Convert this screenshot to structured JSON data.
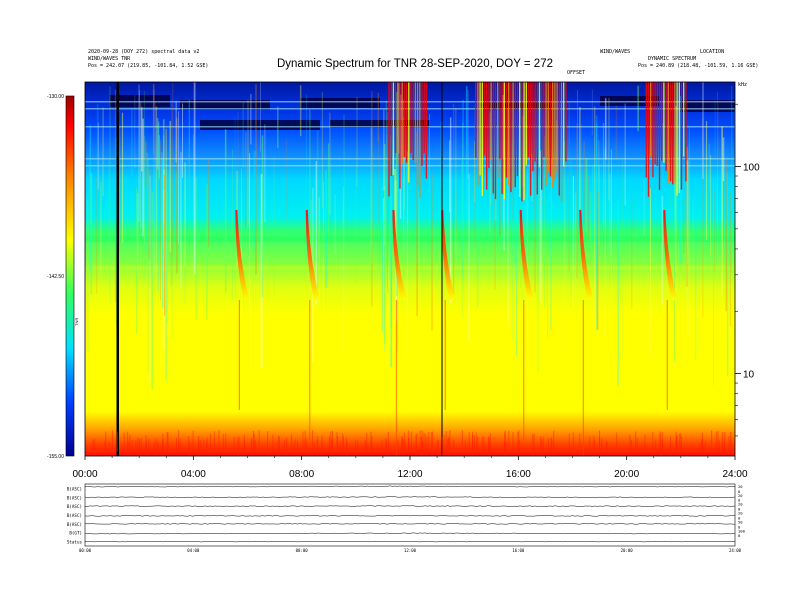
{
  "header": {
    "title": "Dynamic Spectrum for TNR 28-SEP-2020, DOY = 272",
    "left_line1": "2020-09-28 (DOY 272) spectral data v2",
    "left_line2": "WIND/WAVES TNR",
    "left_line3": "Pos = 242.07 (219.85, -101.84, 1.52 GSE)",
    "right_line1": "WIND/WAVES",
    "right_line2": "LOCATION",
    "right_line3": "DYNAMIC SPECTRUM",
    "right_line4": "Pos = 240.89 (218.48, -101.59, 1.16 GSE)",
    "center_small": "OFFSET",
    "corner_right": "kHz"
  },
  "colorbar": {
    "labels": [
      "-130.00",
      "-142.50",
      "-155.00"
    ],
    "axis_label": "TNR"
  },
  "chart_data": [
    {
      "type": "heatmap",
      "title": "Dynamic Spectrum for TNR 28-SEP-2020, DOY = 272",
      "x_tick_labels": [
        "00:00",
        "04:00",
        "08:00",
        "12:00",
        "16:00",
        "20:00",
        "24:00"
      ],
      "x_range_hours": [
        0,
        24
      ],
      "y_scale": "log",
      "y_tick_labels": [
        "100",
        "10"
      ],
      "y_range_khz": [
        4,
        256
      ],
      "colorbar_range": [
        -155.0,
        -130.0
      ],
      "colorbar_ticks": [
        -130.0,
        -142.5,
        -155.0
      ],
      "colormap": [
        "#000090",
        "#0040ff",
        "#00d0ff",
        "#30ff60",
        "#ffff00",
        "#ff8000",
        "#ff0000",
        "#a00000"
      ],
      "data_gaps_hours": [
        1.2,
        13.2
      ],
      "type_iii_bursts_hours": [
        5.7,
        8.3,
        11.5,
        13.3,
        16.2,
        18.4,
        21.5
      ]
    },
    {
      "type": "line",
      "title": "",
      "x_tick_labels": [
        "00:00",
        "04:00",
        "08:00",
        "12:00",
        "16:00",
        "20:00",
        "24:00"
      ],
      "series": [
        {
          "name": "B(ASC)",
          "values": [
            0.7,
            0.7,
            0.72,
            0.75,
            0.7,
            0.7,
            0.7
          ]
        },
        {
          "name": "B(ASC)",
          "values": [
            0.5,
            0.5,
            0.52,
            0.55,
            0.5,
            0.5,
            0.5
          ]
        },
        {
          "name": "B(ASC)",
          "values": [
            0.5,
            0.5,
            0.5,
            0.52,
            0.5,
            0.5,
            0.5
          ]
        },
        {
          "name": "B(ASC)",
          "values": [
            0.4,
            0.4,
            0.4,
            0.42,
            0.4,
            0.4,
            0.4
          ]
        },
        {
          "name": "B(ASC)",
          "values": [
            0.5,
            0.5,
            0.5,
            0.5,
            0.5,
            0.5,
            0.5
          ]
        },
        {
          "name": "B(GT)",
          "values": [
            0.4,
            0.4,
            0.42,
            0.45,
            0.42,
            0.4,
            0.4
          ]
        },
        {
          "name": "Status",
          "values": [
            0.5,
            0.5,
            0.5,
            0.5,
            0.5,
            0.5,
            0.5
          ]
        }
      ],
      "right_tick_labels": [
        [
          "20",
          "0"
        ],
        [
          "20",
          "0"
        ],
        [
          "20",
          "0"
        ],
        [
          "20",
          "0"
        ],
        [
          "50",
          "0"
        ],
        [
          "100",
          "0"
        ],
        [
          "",
          ""
        ]
      ]
    }
  ]
}
